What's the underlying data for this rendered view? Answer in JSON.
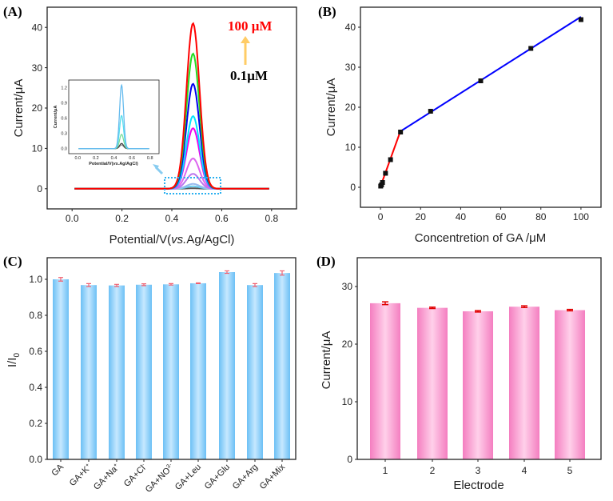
{
  "chart_data": [
    {
      "panel": "(A)",
      "type": "line",
      "xlabel_prefix": "Potential/V(",
      "xlabel_italic": "vs.",
      "xlabel_suffix": "Ag/AgCl)",
      "ylabel": "Current/μA",
      "xlim": [
        -0.1,
        0.9
      ],
      "ylim": [
        -5,
        45
      ],
      "xticks": [
        "0.0",
        "0.2",
        "0.4",
        "0.6",
        "0.8"
      ],
      "yticks": [
        "0",
        "10",
        "20",
        "30",
        "40"
      ],
      "peak_potential": 0.485,
      "series": [
        {
          "name": "100 μM",
          "peak": 41,
          "color": "#ff0000"
        },
        {
          "peak": 33.5,
          "color": "#22dd22"
        },
        {
          "peak": 26,
          "color": "#0000ee"
        },
        {
          "peak": 18,
          "color": "#00e5ff"
        },
        {
          "peak": 15,
          "color": "#ee00ee"
        },
        {
          "peak": 7.5,
          "color": "#dd66ee"
        },
        {
          "peak": 3.7,
          "color": "#bb77ee"
        },
        {
          "peak": 1.2,
          "color": "#99bbee"
        },
        {
          "peak": 0.6,
          "color": "#66ccee"
        },
        {
          "name": "0.1μM",
          "peak": 0.1,
          "color": "#555555"
        }
      ],
      "annotations": {
        "top": "100 μM",
        "bottom": "0.1μM",
        "top_color": "#ff0000",
        "arrow_color": "#ffcc66"
      },
      "inset": {
        "ylabel": "Current/μA",
        "xlabel_prefix": "Potential/V(",
        "xlabel_italic": "vs.",
        "xlabel_suffix": "Ag/AgCl)",
        "xlim": [
          -0.1,
          0.9
        ],
        "ylim": [
          -0.1,
          1.35
        ],
        "xticks": [
          "0.0",
          "0.2",
          "0.4",
          "0.6",
          "0.8"
        ],
        "yticks": [
          "0.0",
          "0.3",
          "0.6",
          "0.9",
          "1.2"
        ],
        "series": [
          {
            "peak": 1.25,
            "color": "#66bbee"
          },
          {
            "peak": 0.65,
            "color": "#55ddee"
          },
          {
            "peak": 0.28,
            "color": "#77dd99"
          },
          {
            "peak": 0.1,
            "color": "#444444"
          },
          {
            "peak": 0.07,
            "color": "#999999"
          }
        ]
      }
    },
    {
      "panel": "(B)",
      "type": "scatter",
      "xlabel": "Concentretion of GA /μM",
      "ylabel": "Current/μA",
      "xlim": [
        -10,
        110
      ],
      "ylim": [
        -5,
        45
      ],
      "xticks": [
        "0",
        "20",
        "40",
        "60",
        "80",
        "100"
      ],
      "yticks": [
        "0",
        "10",
        "20",
        "30",
        "40"
      ],
      "x": [
        0.1,
        0.5,
        1,
        2.5,
        5,
        10,
        25,
        50,
        75,
        100
      ],
      "y": [
        0.3,
        0.6,
        1.2,
        3.5,
        6.9,
        13.8,
        19,
        26.6,
        34.7,
        41.9
      ],
      "fits": [
        {
          "x": [
            0,
            10
          ],
          "y": [
            0.2,
            14.1
          ],
          "color": "#ff0000"
        },
        {
          "x": [
            10,
            100
          ],
          "y": [
            14,
            42.6
          ],
          "color": "#0000ff"
        }
      ]
    },
    {
      "panel": "(C)",
      "type": "bar",
      "ylabel": "I/I",
      "ylabel_sub": "0",
      "ylim": [
        0,
        1.12
      ],
      "yticks": [
        "0.0",
        "0.2",
        "0.4",
        "0.6",
        "0.8",
        "1.0"
      ],
      "categories": [
        [
          "GA",
          ""
        ],
        [
          "GA+K",
          "+"
        ],
        [
          "GA+Na",
          "+"
        ],
        [
          "GA+Cl",
          "-"
        ],
        [
          "GA+NO",
          "3-"
        ],
        [
          "GA+Leu",
          ""
        ],
        [
          "GA+Glu",
          ""
        ],
        [
          "GA+Arg",
          ""
        ],
        [
          "GA+Mix",
          ""
        ]
      ],
      "values": [
        1.0,
        0.968,
        0.966,
        0.97,
        0.972,
        0.978,
        1.04,
        0.968,
        1.035
      ],
      "errors": [
        0.01,
        0.008,
        0.006,
        0.005,
        0.004,
        0.002,
        0.007,
        0.008,
        0.012
      ]
    },
    {
      "panel": "(D)",
      "type": "bar",
      "xlabel": "Electrode",
      "ylabel": "Current/μA",
      "ylim": [
        0,
        35
      ],
      "yticks": [
        "0",
        "10",
        "20",
        "30"
      ],
      "categories": [
        "1",
        "2",
        "3",
        "4",
        "5"
      ],
      "values": [
        27.1,
        26.3,
        25.7,
        26.5,
        25.9
      ],
      "errors": [
        0.25,
        0.12,
        0.12,
        0.15,
        0.12
      ]
    }
  ]
}
